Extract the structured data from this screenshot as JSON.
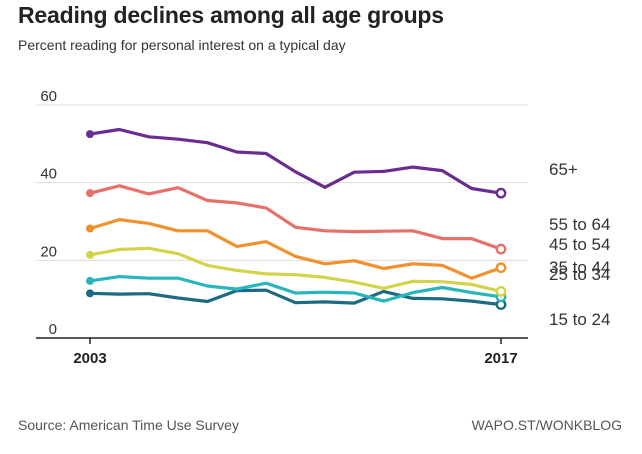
{
  "header": {
    "title": "Reading declines among all age groups",
    "subtitle": "Percent reading for personal interest on a typical day"
  },
  "footer": {
    "source": "Source: American Time Use Survey",
    "credit": "WAPO.ST/WONKBLOG"
  },
  "chart_data": {
    "type": "line",
    "title": "Reading declines among all age groups",
    "subtitle": "Percent reading for personal interest on a typical day",
    "xlabel": "",
    "ylabel": "",
    "x": [
      2003,
      2004,
      2005,
      2006,
      2007,
      2008,
      2009,
      2010,
      2011,
      2012,
      2013,
      2014,
      2015,
      2016,
      2017
    ],
    "x_tick_labels": [
      "2003",
      "2017"
    ],
    "yticks": [
      0,
      20,
      40,
      60
    ],
    "ylim": [
      0,
      60
    ],
    "grid": true,
    "series": [
      {
        "name": "65+",
        "color": "#6a2c91",
        "values": [
          52.5,
          53.7,
          51.8,
          51.2,
          50.3,
          47.9,
          47.5,
          42.8,
          38.8,
          42.7,
          42.9,
          44.0,
          43.1,
          38.5,
          37.3
        ]
      },
      {
        "name": "55 to 64",
        "color": "#e8706b",
        "values": [
          37.3,
          39.2,
          37.1,
          38.7,
          35.4,
          34.8,
          33.5,
          28.5,
          27.6,
          27.4,
          27.5,
          27.6,
          25.6,
          25.6,
          22.9
        ]
      },
      {
        "name": "45 to 54",
        "color": "#f0912e",
        "values": [
          28.2,
          30.5,
          29.5,
          27.6,
          27.6,
          23.6,
          24.8,
          21.0,
          19.1,
          19.9,
          17.9,
          19.1,
          18.7,
          15.4,
          18.1
        ]
      },
      {
        "name": "35 to 44",
        "color": "#d2d34a",
        "values": [
          21.4,
          22.8,
          23.1,
          21.7,
          18.7,
          17.4,
          16.5,
          16.3,
          15.6,
          14.4,
          12.8,
          14.6,
          14.5,
          13.8,
          12.0
        ]
      },
      {
        "name": "25 to 34",
        "color": "#28b5bb",
        "values": [
          14.7,
          15.8,
          15.4,
          15.4,
          13.4,
          12.6,
          14.1,
          11.6,
          11.8,
          11.6,
          9.5,
          11.7,
          13.0,
          11.7,
          10.6
        ]
      },
      {
        "name": "15 to 24",
        "color": "#1d6b80",
        "values": [
          11.5,
          11.3,
          11.4,
          10.3,
          9.4,
          12.2,
          12.3,
          9.1,
          9.3,
          9.0,
          12.0,
          10.2,
          10.1,
          9.5,
          8.6
        ]
      }
    ],
    "legend_placement": "right, inline labels at line ends"
  }
}
